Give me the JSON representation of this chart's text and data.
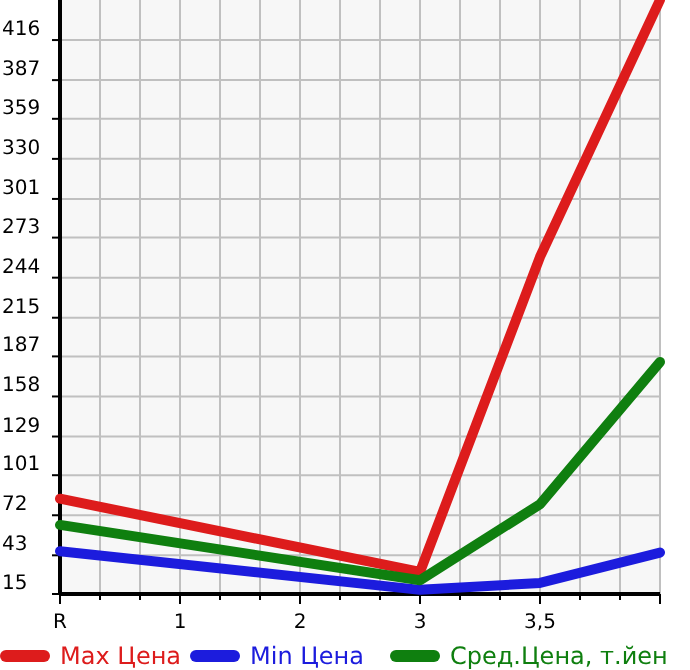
{
  "chart_data": {
    "type": "line",
    "categories": [
      "R",
      "1",
      "2",
      "3",
      "3,5",
      null
    ],
    "series": [
      {
        "name": "Max Цена",
        "color": "#dd1c1c",
        "values": [
          84,
          null,
          null,
          31,
          259,
          445
        ]
      },
      {
        "name": "Min Цена",
        "color": "#1c1cdd",
        "values": [
          46,
          null,
          null,
          18,
          23,
          45
        ]
      },
      {
        "name": "Сред.Цена, т.йен",
        "color": "#0f7f0f",
        "values": [
          65,
          null,
          null,
          25,
          80,
          183
        ]
      }
    ],
    "ylim": [
      15,
      445
    ],
    "yticks": [
      15,
      43,
      72,
      101,
      129,
      158,
      187,
      215,
      244,
      273,
      301,
      330,
      359,
      387,
      416
    ],
    "grid": true,
    "legend": "bottom",
    "marker": "none",
    "line_style": "solid"
  }
}
